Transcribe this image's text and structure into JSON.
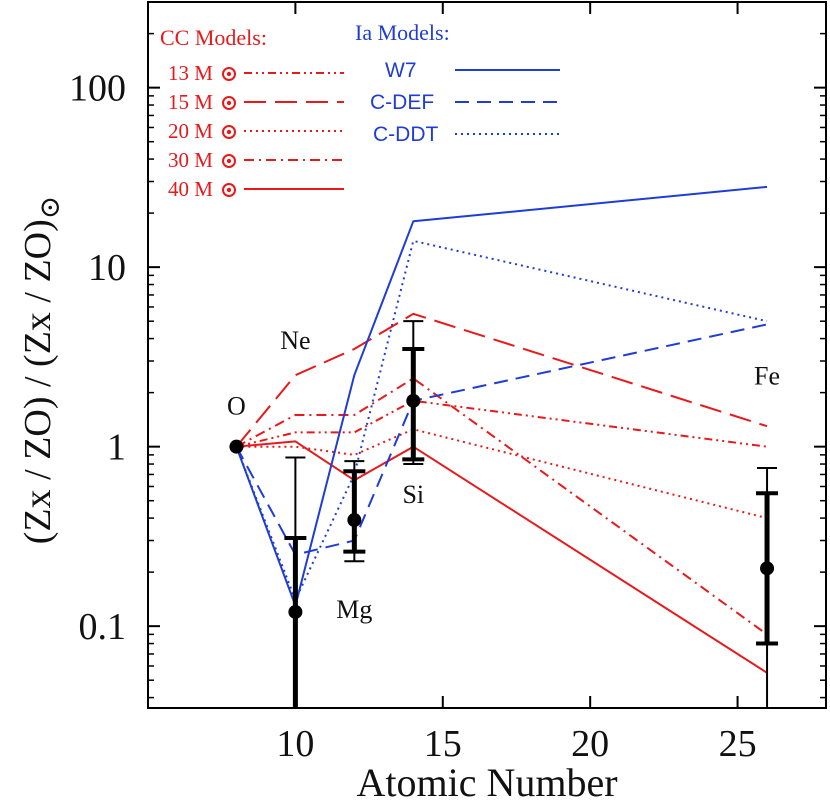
{
  "chart_data": {
    "type": "line",
    "title": "",
    "xlabel": "Atomic Number",
    "ylabel": "(Zx / ZO) / (Zx / ZO)",
    "ylabel_subscript": "⊙",
    "xscale": "linear",
    "yscale": "log",
    "xlim": [
      5,
      28
    ],
    "ylim": [
      0.035,
      300
    ],
    "x_ticks": [
      10,
      15,
      20,
      25
    ],
    "x_tick_labels": [
      "10",
      "15",
      "20",
      "25"
    ],
    "y_ticks": [
      0.1,
      1,
      10,
      100
    ],
    "y_tick_labels": [
      "0.1",
      "1",
      "10",
      "100"
    ],
    "x": [
      8,
      10,
      12,
      14,
      26
    ],
    "series": [
      {
        "name": "13 M",
        "group": "CC",
        "color": "#e8191b",
        "dash": "dash-dot-dot",
        "values": [
          1.0,
          1.2,
          1.2,
          1.8,
          1.0
        ]
      },
      {
        "name": "15 M",
        "group": "CC",
        "color": "#e8191b",
        "dash": "long-dash",
        "values": [
          1.0,
          2.5,
          3.5,
          5.5,
          1.3
        ]
      },
      {
        "name": "20 M",
        "group": "CC",
        "color": "#e8191b",
        "dash": "dotted",
        "values": [
          1.0,
          1.0,
          0.9,
          1.25,
          0.4
        ]
      },
      {
        "name": "30 M",
        "group": "CC",
        "color": "#e8191b",
        "dash": "dash-dot",
        "values": [
          1.0,
          1.5,
          1.5,
          2.4,
          0.09
        ]
      },
      {
        "name": "40 M",
        "group": "CC",
        "color": "#e8191b",
        "dash": "solid",
        "values": [
          1.0,
          1.07,
          0.65,
          1.0,
          0.055
        ]
      },
      {
        "name": "W7",
        "group": "Ia",
        "color": "#1f3dd6",
        "dash": "solid",
        "values": [
          1.0,
          0.13,
          2.5,
          18.0,
          28.0
        ]
      },
      {
        "name": "C-DEF",
        "group": "Ia",
        "color": "#1f3dd6",
        "dash": "dash",
        "values": [
          1.0,
          0.25,
          0.3,
          1.8,
          4.8
        ]
      },
      {
        "name": "C-DDT",
        "group": "Ia",
        "color": "#1f3dd6",
        "dash": "dotted",
        "values": [
          1.0,
          0.14,
          0.7,
          14.0,
          5.0
        ]
      }
    ],
    "observed": [
      {
        "element": "O",
        "x": 8,
        "y": 1.0,
        "err_inner": null,
        "err_outer": null
      },
      {
        "element": "Ne",
        "x": 10,
        "y": 0.12,
        "err_inner": [
          0.035,
          0.31
        ],
        "err_outer": [
          0.035,
          0.87
        ]
      },
      {
        "element": "Mg",
        "x": 12,
        "y": 0.39,
        "err_inner": [
          0.26,
          0.73
        ],
        "err_outer": [
          0.23,
          0.83
        ]
      },
      {
        "element": "Si",
        "x": 14,
        "y": 1.8,
        "err_inner": [
          0.85,
          3.5
        ],
        "err_outer": [
          0.8,
          5.0
        ]
      },
      {
        "element": "Fe",
        "x": 26,
        "y": 0.21,
        "err_inner": [
          0.08,
          0.55
        ],
        "err_outer": [
          0.035,
          0.76
        ]
      }
    ],
    "annotations": [
      {
        "text": "O",
        "x": 8,
        "y": 1.0
      },
      {
        "text": "Ne",
        "x": 10,
        "y": 3.0
      },
      {
        "text": "Mg",
        "x": 12,
        "y": 0.1
      },
      {
        "text": "Si",
        "x": 14,
        "y": 0.45
      },
      {
        "text": "Fe",
        "x": 26,
        "y": 2.0
      }
    ],
    "legend": {
      "placement": "top-left",
      "cc_title": "CC Models:",
      "ia_title": "Ia Models:",
      "mass_unit": "M"
    }
  }
}
